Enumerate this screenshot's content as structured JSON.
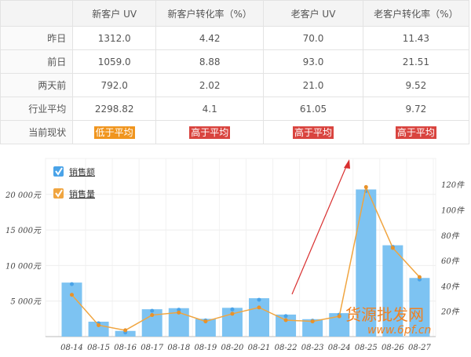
{
  "table": {
    "headers": [
      "",
      "新客户 UV",
      "新客户转化率（%）",
      "老客户 UV",
      "老客户转化率（%）"
    ],
    "rows": [
      {
        "label": "昨日",
        "values": [
          "1312.0",
          "4.42",
          "70.0",
          "11.43"
        ]
      },
      {
        "label": "前日",
        "values": [
          "1059.0",
          "8.88",
          "93.0",
          "21.51"
        ]
      },
      {
        "label": "两天前",
        "values": [
          "792.0",
          "2.02",
          "21.0",
          "9.52"
        ]
      },
      {
        "label": "行业平均",
        "values": [
          "2298.82",
          "4.1",
          "61.05",
          "9.72"
        ]
      }
    ],
    "status": {
      "label": "当前现状",
      "values": [
        "低于平均",
        "高于平均",
        "高于平均",
        "高于平均"
      ],
      "colors": [
        "#f0951e",
        "#d9443f",
        "#d9443f",
        "#d9443f"
      ]
    }
  },
  "chart_data": {
    "type": "bar+line",
    "categories": [
      "08-14",
      "08-15",
      "08-16",
      "08-17",
      "08-18",
      "08-19",
      "08-20",
      "08-21",
      "08-22",
      "08-23",
      "08-24",
      "08-25",
      "08-26",
      "08-27"
    ],
    "series": [
      {
        "name": "销售额",
        "type": "bar",
        "axis": "left",
        "color": "#7dc3f2",
        "values": [
          7600,
          2100,
          800,
          3850,
          4000,
          2500,
          4050,
          5400,
          3100,
          2450,
          3300,
          20700,
          12850,
          8250
        ]
      },
      {
        "name": "销售量",
        "type": "line",
        "axis": "right",
        "color": "#f0a540",
        "values": [
          33,
          9,
          5,
          17,
          19,
          12,
          18,
          23,
          13,
          12,
          16,
          118,
          70,
          47
        ]
      }
    ],
    "left_axis": {
      "ticks": [
        "5 000元",
        "10 000元",
        "15 000元",
        "20 000元"
      ],
      "tick_values": [
        5000,
        10000,
        15000,
        20000
      ],
      "range": [
        0,
        25000
      ]
    },
    "right_axis": {
      "ticks": [
        "20件",
        "40件",
        "60件",
        "80件",
        "100件",
        "120件"
      ],
      "tick_values": [
        20,
        40,
        60,
        80,
        100,
        120
      ],
      "range": [
        0,
        140
      ]
    },
    "grid": true,
    "legend": "top-left",
    "annotation": "red arrow pointing up toward 08-25"
  },
  "watermark": {
    "text1": "货源批发网",
    "text2": "www.6pf.cn"
  }
}
